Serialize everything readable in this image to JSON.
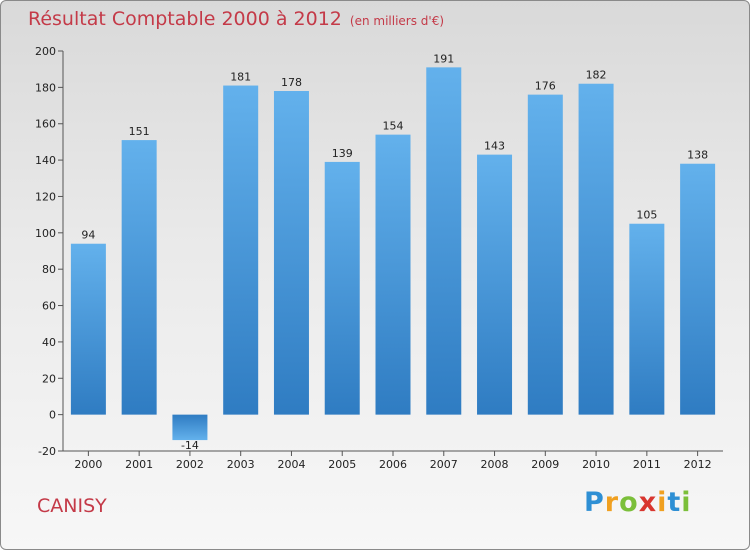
{
  "chart_data": {
    "type": "bar",
    "title": "Résultat Comptable 2000 à 2012",
    "subtitle": "(en milliers d'€)",
    "categories": [
      "2000",
      "2001",
      "2002",
      "2003",
      "2004",
      "2005",
      "2006",
      "2007",
      "2008",
      "2009",
      "2010",
      "2011",
      "2012"
    ],
    "values": [
      94,
      151,
      -14,
      181,
      178,
      139,
      154,
      191,
      143,
      176,
      182,
      105,
      138
    ],
    "ylim": [
      -20,
      200
    ],
    "yticks": [
      -20,
      0,
      20,
      40,
      60,
      80,
      100,
      120,
      140,
      160,
      180,
      200
    ],
    "xlabel": "",
    "ylabel": "",
    "grid": false,
    "legend": "none",
    "colors": {
      "bar": "#3d8fd6",
      "bar_light": "#63b1ec",
      "bar_dark": "#2f7cc2",
      "title": "#c43a48"
    }
  },
  "footer": {
    "place": "CANISY",
    "logo_letters": [
      "P",
      "r",
      "o",
      "x",
      "i",
      "t",
      "i"
    ],
    "logo_colors": [
      "#2e8fd4",
      "#f0a020",
      "#7bbf3a",
      "#d8362f",
      "#f0a020",
      "#2e8fd4",
      "#7bbf3a"
    ]
  }
}
